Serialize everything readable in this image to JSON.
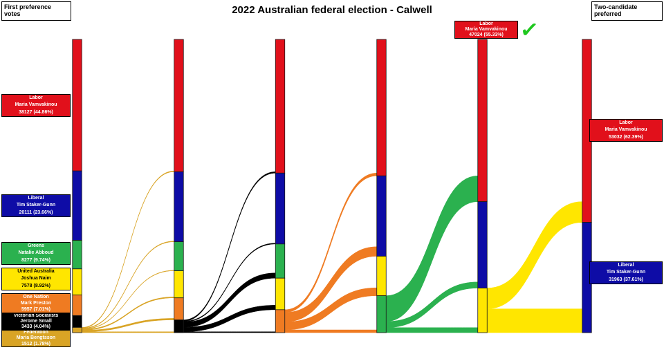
{
  "title": "2022 Australian federal election - Calwell",
  "legend": {
    "left_box": "First preference votes",
    "right_box": "Two-candidate preferred"
  },
  "winner": {
    "party_id": "labor",
    "party": "Labor",
    "candidate": "Maria Vamvakinou",
    "votes": "47024 (55.33%)",
    "checkmark_color": "#1fc81f"
  },
  "first_preferences": [
    {
      "party_id": "labor",
      "party": "Labor",
      "candidate": "Maria Vamvakinou",
      "votes": "38127 (44.86%)"
    },
    {
      "party_id": "liberal",
      "party": "Liberal",
      "candidate": "Tim Staker-Gunn",
      "votes": "20111 (23.66%)"
    },
    {
      "party_id": "greens",
      "party": "Greens",
      "candidate": "Natalie Abboud",
      "votes": "8277 (9.74%)"
    },
    {
      "party_id": "united_australia",
      "party": "United Australia",
      "candidate": "Joshua Naim",
      "votes": "7578 (8.92%)"
    },
    {
      "party_id": "one_nation",
      "party": "One Nation",
      "candidate": "Mark Preston",
      "votes": "5957 (7.01%)"
    },
    {
      "party_id": "victorian_socialists",
      "party": "Victorian Socialists",
      "candidate": "Jerome Small",
      "votes": "3433 (4.04%)"
    },
    {
      "party_id": "federation",
      "party": "Federation",
      "candidate": "Maria Bengtsson",
      "votes": "1512 (1.78%)"
    }
  ],
  "two_candidate_preferred": [
    {
      "party_id": "labor",
      "party": "Labor",
      "candidate": "Maria Vamvakinou",
      "votes": "53032 (62.39%)"
    },
    {
      "party_id": "liberal",
      "party": "Liberal",
      "candidate": "Tim Staker-Gunn",
      "votes": "31963 (37.61%)"
    }
  ],
  "chart_data": {
    "type": "sankey",
    "title": "2022 Australian federal election - Calwell",
    "total_formal_votes": 84995,
    "parties": {
      "labor": {
        "label": "Labor",
        "candidate": "Maria Vamvakinou",
        "color": "#e1101b"
      },
      "liberal": {
        "label": "Liberal",
        "candidate": "Tim Staker-Gunn",
        "color": "#0e0ca6"
      },
      "greens": {
        "label": "Greens",
        "candidate": "Natalie Abboud",
        "color": "#2bb14f"
      },
      "united_australia": {
        "label": "United Australia",
        "candidate": "Joshua Naim",
        "color": "#ffe600",
        "text": "#000000"
      },
      "one_nation": {
        "label": "One Nation",
        "candidate": "Mark Preston",
        "color": "#ef7b22"
      },
      "victorian_socialists": {
        "label": "Victorian Socialists",
        "candidate": "Jerome Small",
        "color": "#000000"
      },
      "federation": {
        "label": "Federation",
        "candidate": "Maria Bengtsson",
        "color": "#d9a425"
      }
    },
    "columns": [
      [
        {
          "party": "labor",
          "votes": 38127
        },
        {
          "party": "liberal",
          "votes": 20111
        },
        {
          "party": "greens",
          "votes": 8277
        },
        {
          "party": "united_australia",
          "votes": 7578
        },
        {
          "party": "one_nation",
          "votes": 5957
        },
        {
          "party": "victorian_socialists",
          "votes": 3433
        },
        {
          "party": "federation",
          "votes": 1512
        }
      ],
      [
        {
          "party": "labor",
          "votes": 38357
        },
        {
          "party": "liberal",
          "votes": 20301
        },
        {
          "party": "greens",
          "votes": 8407
        },
        {
          "party": "united_australia",
          "votes": 7848
        },
        {
          "party": "one_nation",
          "votes": 6387
        },
        {
          "party": "victorian_socialists",
          "votes": 3695
        }
      ],
      [
        {
          "party": "labor",
          "votes": 38750
        },
        {
          "party": "liberal",
          "votes": 20550
        },
        {
          "party": "greens",
          "votes": 9900
        },
        {
          "party": "united_australia",
          "votes": 9150
        },
        {
          "party": "one_nation",
          "votes": 6645
        }
      ],
      [
        {
          "party": "labor",
          "votes": 39550
        },
        {
          "party": "liberal",
          "votes": 23295
        },
        {
          "party": "united_australia",
          "votes": 11450
        },
        {
          "party": "greens",
          "votes": 10700
        }
      ],
      [
        {
          "party": "labor",
          "votes": 47024
        },
        {
          "party": "liberal",
          "votes": 25063
        },
        {
          "party": "united_australia",
          "votes": 12908
        }
      ],
      [
        {
          "party": "labor",
          "votes": 53032
        },
        {
          "party": "liberal",
          "votes": 31963
        }
      ]
    ],
    "stages": [
      {
        "from": "federation",
        "flows": [
          {
            "to": "labor",
            "votes": 230
          },
          {
            "to": "liberal",
            "votes": 190
          },
          {
            "to": "greens",
            "votes": 130
          },
          {
            "to": "united_australia",
            "votes": 270
          },
          {
            "to": "one_nation",
            "votes": 430
          },
          {
            "to": "victorian_socialists",
            "votes": 262
          }
        ]
      },
      {
        "from": "victorian_socialists",
        "flows": [
          {
            "to": "labor",
            "votes": 393
          },
          {
            "to": "liberal",
            "votes": 249
          },
          {
            "to": "greens",
            "votes": 1493
          },
          {
            "to": "united_australia",
            "votes": 1302
          },
          {
            "to": "one_nation",
            "votes": 258
          }
        ]
      },
      {
        "from": "one_nation",
        "flows": [
          {
            "to": "labor",
            "votes": 800
          },
          {
            "to": "liberal",
            "votes": 2745
          },
          {
            "to": "united_australia",
            "votes": 2300
          },
          {
            "to": "greens",
            "votes": 800
          }
        ]
      },
      {
        "from": "greens",
        "flows": [
          {
            "to": "labor",
            "votes": 7474
          },
          {
            "to": "liberal",
            "votes": 1768
          },
          {
            "to": "united_australia",
            "votes": 1458
          }
        ]
      },
      {
        "from": "united_australia",
        "flows": [
          {
            "to": "labor",
            "votes": 6008
          },
          {
            "to": "liberal",
            "votes": 6900
          }
        ]
      }
    ]
  }
}
